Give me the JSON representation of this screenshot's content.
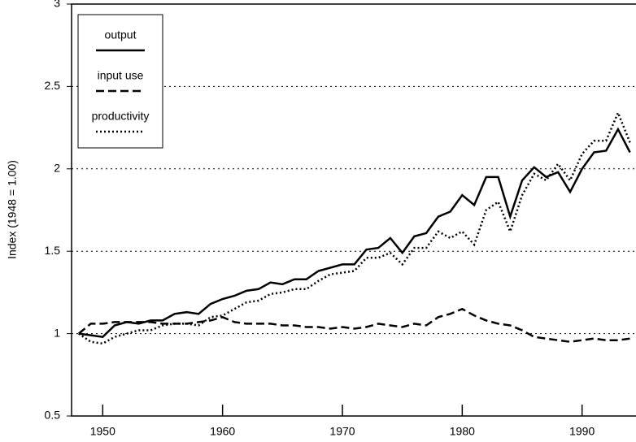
{
  "chart_data": {
    "type": "line",
    "y_label": "Index (1948 = 1.00)",
    "x": [
      1948,
      1949,
      1950,
      1951,
      1952,
      1953,
      1954,
      1955,
      1956,
      1957,
      1958,
      1959,
      1960,
      1961,
      1962,
      1963,
      1964,
      1965,
      1966,
      1967,
      1968,
      1969,
      1970,
      1971,
      1972,
      1973,
      1974,
      1975,
      1976,
      1977,
      1978,
      1979,
      1980,
      1981,
      1982,
      1983,
      1984,
      1985,
      1986,
      1987,
      1988,
      1989,
      1990,
      1991,
      1992,
      1993,
      1994
    ],
    "series": [
      {
        "name": "output",
        "color": "#000000",
        "style": "solid",
        "values": [
          1.0,
          0.99,
          0.98,
          1.05,
          1.07,
          1.06,
          1.08,
          1.08,
          1.12,
          1.13,
          1.12,
          1.18,
          1.21,
          1.23,
          1.26,
          1.27,
          1.31,
          1.3,
          1.33,
          1.33,
          1.38,
          1.4,
          1.42,
          1.42,
          1.51,
          1.52,
          1.58,
          1.49,
          1.59,
          1.61,
          1.71,
          1.74,
          1.84,
          1.78,
          1.95,
          1.95,
          1.71,
          1.93,
          2.01,
          1.95,
          1.98,
          1.86,
          2.0,
          2.1,
          2.11,
          2.24,
          2.1
        ]
      },
      {
        "name": "input use",
        "color": "#000000",
        "style": "dashed",
        "values": [
          1.0,
          1.06,
          1.06,
          1.07,
          1.07,
          1.07,
          1.07,
          1.06,
          1.06,
          1.06,
          1.07,
          1.08,
          1.1,
          1.07,
          1.06,
          1.06,
          1.06,
          1.05,
          1.05,
          1.04,
          1.04,
          1.03,
          1.04,
          1.03,
          1.04,
          1.06,
          1.05,
          1.04,
          1.06,
          1.05,
          1.1,
          1.12,
          1.15,
          1.11,
          1.08,
          1.06,
          1.05,
          1.02,
          0.98,
          0.97,
          0.96,
          0.95,
          0.96,
          0.97,
          0.96,
          0.96,
          0.97
        ]
      },
      {
        "name": "productivity",
        "color": "#000000",
        "style": "dotted",
        "values": [
          1.0,
          0.95,
          0.94,
          0.98,
          1.0,
          1.02,
          1.02,
          1.05,
          1.06,
          1.06,
          1.05,
          1.1,
          1.11,
          1.15,
          1.19,
          1.2,
          1.24,
          1.25,
          1.27,
          1.27,
          1.32,
          1.36,
          1.37,
          1.38,
          1.46,
          1.46,
          1.49,
          1.42,
          1.52,
          1.52,
          1.62,
          1.58,
          1.62,
          1.54,
          1.75,
          1.8,
          1.62,
          1.84,
          1.97,
          1.93,
          2.03,
          1.93,
          2.09,
          2.17,
          2.17,
          2.34,
          2.16
        ]
      }
    ],
    "xlim": [
      1947.4,
      1994.5
    ],
    "xticks": [
      1950,
      1960,
      1970,
      1980,
      1990
    ],
    "ylim": [
      0.5,
      3
    ],
    "yticks": [
      0.5,
      1,
      1.5,
      2,
      2.5,
      3
    ],
    "grid": true,
    "legend": "upper left"
  }
}
